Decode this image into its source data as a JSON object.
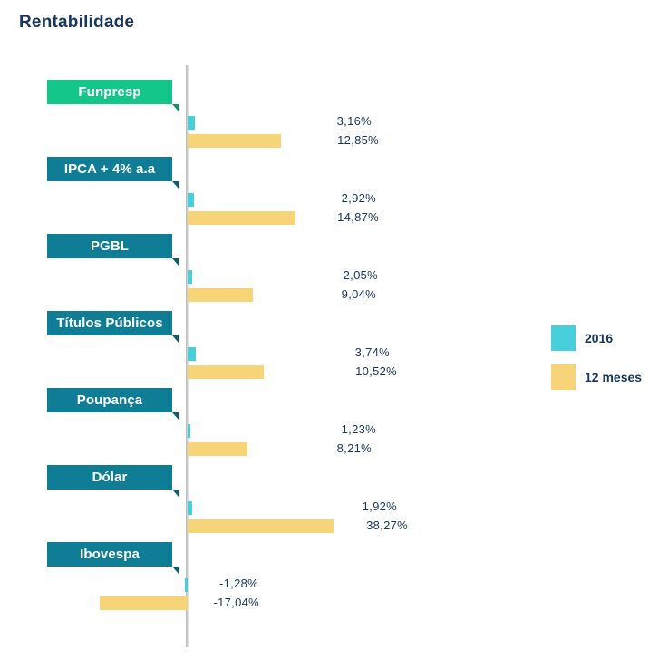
{
  "title": "Rentabilidade",
  "chart_data": {
    "type": "bar",
    "orientation": "horizontal",
    "title": "Rentabilidade",
    "categories": [
      "Funpresp",
      "IPCA + 4% a.a",
      "PGBL",
      "Títulos Públicos",
      "Poupança",
      "Dólar",
      "Ibovespa"
    ],
    "series": [
      {
        "name": "2016",
        "color": "#47cfdc",
        "values": [
          3.16,
          2.92,
          2.05,
          3.74,
          1.23,
          1.92,
          -1.28
        ],
        "labels": [
          "3,16%",
          "2,92%",
          "2,05%",
          "3,74%",
          "1,23%",
          "1,92%",
          "-1,28%"
        ]
      },
      {
        "name": "12 meses",
        "color": "#f8d479",
        "values": [
          12.85,
          14.87,
          9.04,
          10.52,
          8.21,
          38.27,
          -17.04
        ],
        "labels": [
          "12,85%",
          "14,87%",
          "9,04%",
          "10,52%",
          "8,21%",
          "38,27%",
          "-17,04%"
        ]
      }
    ],
    "category_colors": [
      "#14c68a",
      "#0f7d96",
      "#0f7d96",
      "#0f7d96",
      "#0f7d96",
      "#0f7d96",
      "#0f7d96"
    ],
    "legend_position": "right",
    "grid": false
  }
}
